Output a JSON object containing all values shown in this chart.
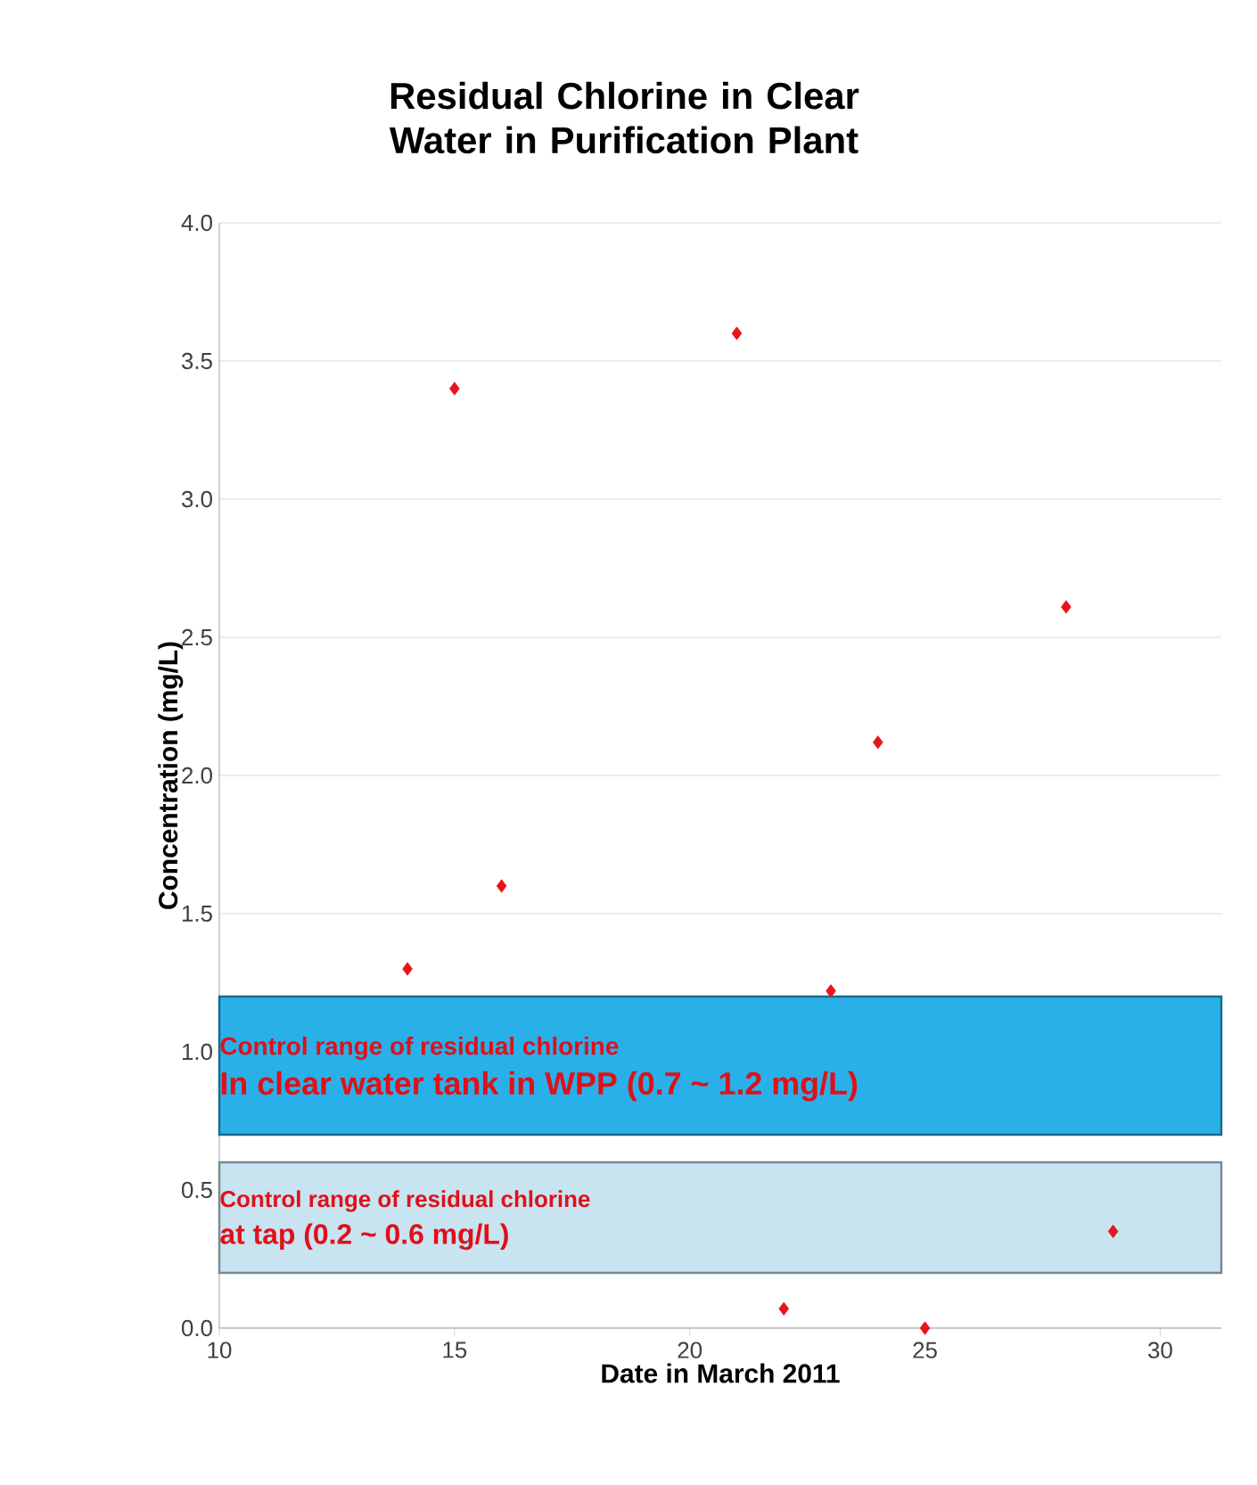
{
  "chart_data": {
    "type": "scatter",
    "title": "Residual Chlorine in Clear Water in Purification Plant",
    "xlabel": "Date in March 2011",
    "ylabel": "Concentration (mg/L)",
    "x": [
      14,
      15,
      16,
      21,
      22,
      23,
      24,
      25,
      28,
      29
    ],
    "values": [
      1.3,
      3.4,
      1.6,
      3.6,
      0.07,
      1.22,
      2.12,
      0.0,
      2.61,
      0.35
    ],
    "color": "#e8141c",
    "marker": "diamond",
    "grid": "y",
    "xlim": [
      10,
      31.3
    ],
    "xticks": [
      10,
      15,
      20,
      25,
      30
    ],
    "ylim": [
      0,
      4
    ],
    "yticks": [
      {
        "value": 0,
        "label": "0.0"
      },
      {
        "value": 0.5,
        "label": "0.5"
      },
      {
        "value": 1,
        "label": "1.0"
      },
      {
        "value": 1.5,
        "label": "1.5"
      },
      {
        "value": 2,
        "label": "2.0"
      },
      {
        "value": 2.5,
        "label": "2.5"
      },
      {
        "value": 3,
        "label": "3.0"
      },
      {
        "value": 3.5,
        "label": "3.5"
      },
      {
        "value": 4,
        "label": "4.0"
      }
    ],
    "bands": [
      {
        "axis": "y",
        "from": 0.7,
        "to": 1.2,
        "label": "In clear water tank in WPP (0.7 ~ 1.2 mg/L)",
        "color": "#2ab0e8"
      },
      {
        "axis": "y",
        "from": 0.2,
        "to": 0.6,
        "label": "at tap (0.2 ~ 0.6 mg/L)",
        "color": "#c8e4f0"
      }
    ],
    "annotations": [
      "Control range of residual chlorine",
      "Control range of residual chlorine"
    ]
  }
}
